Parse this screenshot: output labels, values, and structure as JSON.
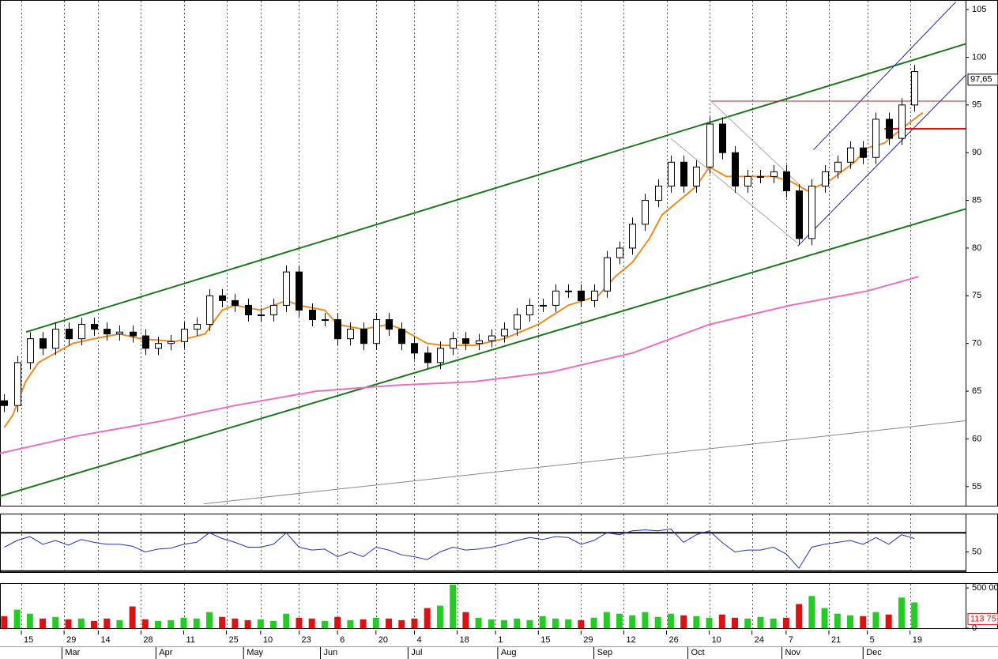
{
  "chart_data": [
    {
      "type": "candlestick",
      "x": [
        1,
        4,
        7,
        10,
        13,
        16,
        19,
        22,
        25,
        28,
        31,
        34,
        37,
        40,
        43,
        46,
        49,
        52,
        55,
        58,
        61,
        64,
        67,
        70,
        73,
        76,
        79,
        82,
        85,
        88,
        91,
        94,
        97,
        100,
        103,
        106,
        109,
        112,
        115,
        118,
        121,
        124,
        127,
        130,
        133,
        136,
        139,
        142,
        145,
        148,
        151,
        154,
        157,
        160,
        163,
        166,
        169,
        172,
        175,
        178,
        181,
        184,
        187,
        190,
        193,
        196,
        199,
        202,
        205,
        208,
        211,
        214
      ],
      "open": [
        64,
        63.5,
        68,
        70.5,
        69.5,
        71.5,
        70.5,
        72,
        71.5,
        71,
        71.2,
        70.8,
        69.5,
        70,
        70.2,
        71.5,
        72,
        75,
        74.5,
        74,
        73,
        73,
        74,
        77.5,
        73.5,
        72.5,
        72.5,
        70.5,
        71.5,
        70,
        72.5,
        71.5,
        70,
        69,
        68,
        69.5,
        70.5,
        70,
        70.3,
        70.8,
        71.5,
        73,
        74,
        74,
        75.5,
        75.5,
        74.5,
        75.5,
        79,
        80,
        82.5,
        85,
        86.5,
        89,
        86.5,
        88.5,
        93,
        90,
        86.5,
        87.5,
        87.5,
        88,
        86,
        81,
        86.5,
        88,
        89,
        90.5,
        89.5,
        93.5,
        91.5,
        95
      ],
      "high": [
        64.7,
        68.7,
        71.2,
        71.2,
        72.2,
        72.2,
        72.7,
        72.7,
        72.2,
        71.9,
        71.9,
        71.5,
        70.7,
        70.9,
        72.2,
        72.7,
        75.7,
        75.7,
        75.2,
        74.7,
        73.7,
        74.7,
        78.2,
        78.2,
        74.2,
        73.2,
        73.2,
        72.2,
        72.2,
        73.2,
        73.2,
        72.2,
        70.7,
        69.7,
        70.2,
        71.2,
        71.2,
        71,
        71.5,
        72.2,
        73.7,
        74.7,
        74.7,
        76.2,
        76.2,
        76.2,
        76.2,
        79.7,
        80.7,
        83.2,
        85.7,
        87.2,
        89.7,
        89.7,
        89.2,
        93.7,
        93.7,
        90.7,
        88.2,
        88.2,
        88.7,
        88.7,
        86.7,
        87.2,
        88.7,
        89.7,
        91.2,
        91.2,
        94.2,
        94.2,
        95.7,
        99.2
      ],
      "low": [
        62.8,
        62.8,
        67.3,
        68.8,
        68.8,
        69.8,
        69.8,
        70.8,
        70.3,
        70.3,
        70.1,
        68.8,
        68.8,
        69.3,
        69.5,
        70.8,
        71.3,
        73.8,
        73.3,
        72.3,
        72.3,
        72.3,
        73.3,
        72.8,
        71.8,
        71.8,
        69.8,
        69.8,
        69.3,
        69.3,
        70.8,
        69.3,
        68.3,
        67.3,
        67.3,
        68.8,
        69.3,
        69.3,
        69.6,
        70.1,
        70.8,
        72.3,
        73.3,
        73.3,
        74.8,
        73.8,
        73.8,
        74.8,
        78.3,
        79.3,
        81.8,
        84.3,
        85.8,
        85.8,
        85.8,
        87.8,
        89.3,
        85.8,
        85.8,
        86.8,
        86.8,
        85.3,
        80.3,
        80.3,
        85.8,
        87.3,
        88.3,
        88.8,
        88.8,
        90.8,
        90.8,
        94.3
      ],
      "close": [
        63.5,
        68,
        70.5,
        69.5,
        71.5,
        70.5,
        72,
        71.5,
        71,
        71.2,
        70.8,
        69.5,
        70,
        70.2,
        71.5,
        72,
        75,
        74.5,
        74,
        73,
        73,
        74,
        77.5,
        73.5,
        72.5,
        72.5,
        70.5,
        71.5,
        70,
        72.5,
        71.5,
        70,
        69,
        68,
        69.5,
        70.5,
        70,
        70.3,
        70.8,
        71.5,
        73,
        74,
        74,
        75.5,
        75.5,
        74.5,
        75.5,
        79,
        80,
        82.5,
        85,
        86.5,
        89,
        86.5,
        88.5,
        93,
        90,
        86.5,
        87.5,
        87.5,
        88,
        86,
        81,
        86.5,
        88,
        89,
        90.5,
        89.5,
        93.5,
        91.5,
        95,
        98.5
      ],
      "up_color": "#ffffff",
      "down_color": "#000000",
      "xlim": [
        0,
        226
      ],
      "ylim": [
        53,
        106
      ],
      "yticks": [
        55,
        60,
        65,
        70,
        75,
        80,
        85,
        90,
        95,
        100,
        105
      ],
      "xticks": [
        {
          "value": 5,
          "label": "15"
        },
        {
          "value": 15,
          "label": "29"
        },
        {
          "value": 23,
          "label": "14"
        },
        {
          "value": 33,
          "label": "28"
        },
        {
          "value": 43,
          "label": "11"
        },
        {
          "value": 53,
          "label": "25"
        },
        {
          "value": 61,
          "label": "10"
        },
        {
          "value": 70,
          "label": "23"
        },
        {
          "value": 79,
          "label": "6"
        },
        {
          "value": 88,
          "label": "20"
        },
        {
          "value": 97,
          "label": "4"
        },
        {
          "value": 107,
          "label": "18"
        },
        {
          "value": 116,
          "label": "1"
        },
        {
          "value": 126,
          "label": "15"
        },
        {
          "value": 136,
          "label": "29"
        },
        {
          "value": 146,
          "label": "12"
        },
        {
          "value": 156,
          "label": "26"
        },
        {
          "value": 166,
          "label": "10"
        },
        {
          "value": 176,
          "label": "24"
        },
        {
          "value": 184,
          "label": "7"
        },
        {
          "value": 194,
          "label": "21"
        },
        {
          "value": 203,
          "label": "5"
        },
        {
          "value": 213,
          "label": "19"
        }
      ],
      "month_ticks": [
        {
          "value": 14.5,
          "label": "Mar"
        },
        {
          "value": 36.5,
          "label": "Apr"
        },
        {
          "value": 57,
          "label": "May"
        },
        {
          "value": 75,
          "label": "Jun"
        },
        {
          "value": 95.5,
          "label": "Jul"
        },
        {
          "value": 116.5,
          "label": "Aug"
        },
        {
          "value": 139,
          "label": "Sep"
        },
        {
          "value": 161,
          "label": "Oct"
        },
        {
          "value": 183,
          "label": "Nov"
        },
        {
          "value": 202,
          "label": "Dec"
        }
      ],
      "last_price": {
        "value": 97.65,
        "label": "97,65"
      },
      "series": [
        {
          "color": "#f08a1c",
          "x": [
            1,
            3,
            6,
            9,
            13,
            17,
            22,
            28,
            33,
            41,
            48,
            52,
            55,
            61,
            67,
            70,
            76,
            79,
            85,
            91,
            94,
            100,
            104,
            111,
            118,
            126,
            133,
            140,
            144,
            148,
            152,
            155,
            159,
            163,
            166,
            170,
            176,
            181,
            185,
            189,
            194,
            200,
            203,
            207,
            211,
            216
          ],
          "values": [
            61.2,
            62.5,
            66,
            68,
            69,
            70,
            70.5,
            71,
            70.5,
            70.2,
            71,
            73.5,
            74,
            73.5,
            74.5,
            74,
            73.5,
            72,
            71.5,
            72,
            71.5,
            70,
            69.8,
            69.8,
            70.5,
            72,
            74,
            75,
            77,
            78.5,
            81,
            83.5,
            85,
            86.5,
            88.5,
            87.5,
            87.5,
            87.5,
            87,
            86,
            87,
            89,
            90.5,
            91,
            92.5,
            94.2
          ]
        },
        {
          "color": "#f06cc0",
          "x": [
            0,
            18,
            37,
            55,
            74,
            92,
            111,
            129,
            148,
            166,
            185,
            203,
            215
          ],
          "values": [
            58.5,
            60.3,
            61.8,
            63.5,
            65,
            65.6,
            66,
            67,
            69,
            72,
            74,
            75.5,
            77
          ]
        }
      ],
      "lines": [
        {
          "color": "#1a7a1a",
          "width": 2,
          "x": [
            6.1,
            226
          ],
          "y": [
            71.2,
            101.4
          ]
        },
        {
          "color": "#1a7a1a",
          "width": 2,
          "x": [
            0,
            226
          ],
          "y": [
            54,
            84.1
          ]
        },
        {
          "color": "#2222aa",
          "width": 1,
          "x": [
            190.4,
            223.7
          ],
          "y": [
            90.3,
            105.8
          ]
        },
        {
          "color": "#2222aa",
          "width": 1,
          "x": [
            186.7,
            226
          ],
          "y": [
            80.2,
            98.1
          ]
        },
        {
          "color": "#cc2222",
          "width": 1,
          "x": [
            166.4,
            226
          ],
          "y": [
            95.4,
            95.4
          ]
        },
        {
          "color": "#dd1111",
          "width": 2,
          "x": [
            207,
            226
          ],
          "y": [
            92.5,
            92.5
          ]
        },
        {
          "color": "#aaaaaa",
          "width": 1,
          "x": [
            166.4,
            188.6
          ],
          "y": [
            95.4,
            86
          ]
        },
        {
          "color": "#aaaaaa",
          "width": 1,
          "x": [
            157,
            186.7
          ],
          "y": [
            91.5,
            80.5
          ]
        },
        {
          "color": "#888888",
          "width": 1,
          "x": [
            47.7,
            226
          ],
          "y": [
            53.2,
            61.9
          ]
        }
      ]
    },
    {
      "type": "line",
      "color": "#2233bb",
      "values": [
        55,
        62,
        66,
        58,
        62,
        57,
        63,
        60,
        58,
        58,
        56,
        50,
        53,
        54,
        58,
        60,
        70,
        64,
        60,
        55,
        55,
        58,
        70,
        55,
        52,
        53,
        45,
        50,
        45,
        55,
        52,
        47,
        45,
        42,
        50,
        55,
        52,
        53,
        55,
        58,
        62,
        65,
        63,
        66,
        65,
        58,
        62,
        70,
        68,
        72,
        73,
        72,
        74,
        60,
        68,
        72,
        60,
        50,
        52,
        52,
        55,
        48,
        33,
        55,
        58,
        60,
        62,
        58,
        65,
        58,
        68,
        64
      ],
      "ylim": [
        29,
        90
      ],
      "yticks": [
        50
      ],
      "levels": [
        30,
        70
      ]
    },
    {
      "type": "bar",
      "values": [
        150000,
        230000,
        180000,
        120000,
        140000,
        110000,
        120000,
        90000,
        120000,
        100000,
        270000,
        110000,
        90000,
        100000,
        130000,
        120000,
        200000,
        140000,
        120000,
        100000,
        110000,
        90000,
        180000,
        130000,
        120000,
        90000,
        140000,
        100000,
        110000,
        130000,
        120000,
        100000,
        120000,
        250000,
        280000,
        540000,
        200000,
        130000,
        110000,
        100000,
        120000,
        100000,
        150000,
        120000,
        110000,
        100000,
        130000,
        200000,
        180000,
        160000,
        200000,
        140000,
        180000,
        160000,
        150000,
        130000,
        170000,
        130000,
        120000,
        140000,
        120000,
        130000,
        300000,
        400000,
        250000,
        180000,
        160000,
        150000,
        200000,
        170000,
        380000,
        320000
      ],
      "up_color": "#22cc22",
      "down_color": "#dd1111",
      "ylim": [
        0,
        560000
      ],
      "yticks": [
        0,
        {
          "value": 500000,
          "label": "500 00"
        }
      ],
      "last_value": {
        "value": 113750,
        "label": "113 75"
      }
    }
  ]
}
